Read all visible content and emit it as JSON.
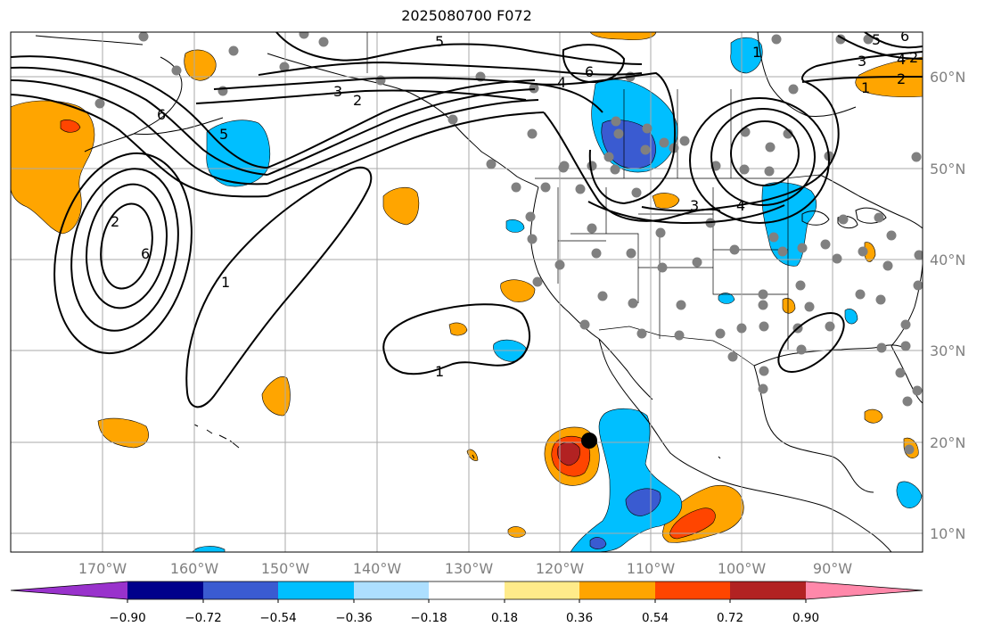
{
  "title": "2025080700 F072",
  "map": {
    "longitude_labels": [
      "170°W",
      "160°W",
      "150°W",
      "140°W",
      "130°W",
      "120°W",
      "110°W",
      "100°W",
      "90°W"
    ],
    "latitude_labels": [
      "60°N",
      "50°N",
      "40°N",
      "30°N",
      "20°N",
      "10°N"
    ],
    "contour_labels": [
      "5",
      "6",
      "4",
      "3",
      "2",
      "1",
      "6",
      "1",
      "6",
      "3",
      "4",
      "1",
      "2",
      "4",
      "5",
      "6",
      "1",
      "2",
      "5",
      "3",
      "2"
    ],
    "marker": "storm-center-dot"
  },
  "colorbar": {
    "ticks": [
      "−0.90",
      "−0.72",
      "−0.54",
      "−0.36",
      "−0.18",
      "0.18",
      "0.36",
      "0.54",
      "0.72",
      "0.90"
    ],
    "colors": [
      "#9932CC",
      "#00008B",
      "#3A5BD1",
      "#00BFFF",
      "#ADDFFF",
      "#FFFFFF",
      "#FFEB8A",
      "#FFA500",
      "#FF4500",
      "#B22222",
      "#FF88AA"
    ]
  },
  "colors": {
    "orange": "#FFA500",
    "red_orange": "#FF4500",
    "dark_red": "#B22222",
    "sky_blue": "#00BFFF",
    "royal_blue": "#3A5BD1",
    "station_dot": "#808080",
    "gridline": "#AAAAAA"
  }
}
